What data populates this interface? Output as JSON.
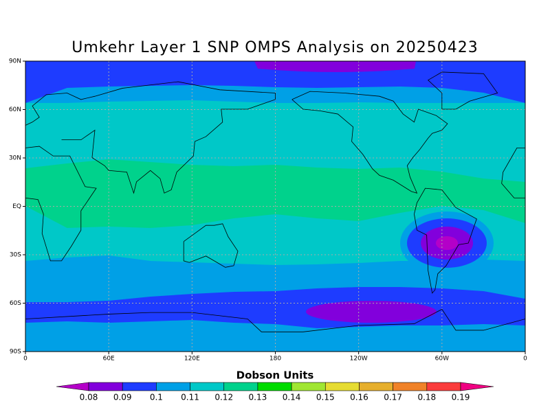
{
  "title": "Umkehr Layer 1 SNP OMPS Analysis on 20250423",
  "map": {
    "lat_labels": [
      "90N",
      "60N",
      "30N",
      "EQ",
      "30S",
      "60S",
      "90S"
    ],
    "lon_labels": [
      "0",
      "60E",
      "120E",
      "180",
      "120W",
      "60W",
      "0"
    ]
  },
  "legend": {
    "title": "Dobson Units",
    "labels": [
      "0.08",
      "0.09",
      "0.1",
      "0.11",
      "0.12",
      "0.13",
      "0.14",
      "0.15",
      "0.16",
      "0.17",
      "0.18",
      "0.19"
    ],
    "colors": [
      "#b400c8",
      "#8200dc",
      "#1e3cff",
      "#00a0e6",
      "#00c8c8",
      "#00d28c",
      "#00dc00",
      "#a0e632",
      "#e6dc32",
      "#e6af2d",
      "#f08228",
      "#fa3c3c",
      "#f00082"
    ]
  }
}
